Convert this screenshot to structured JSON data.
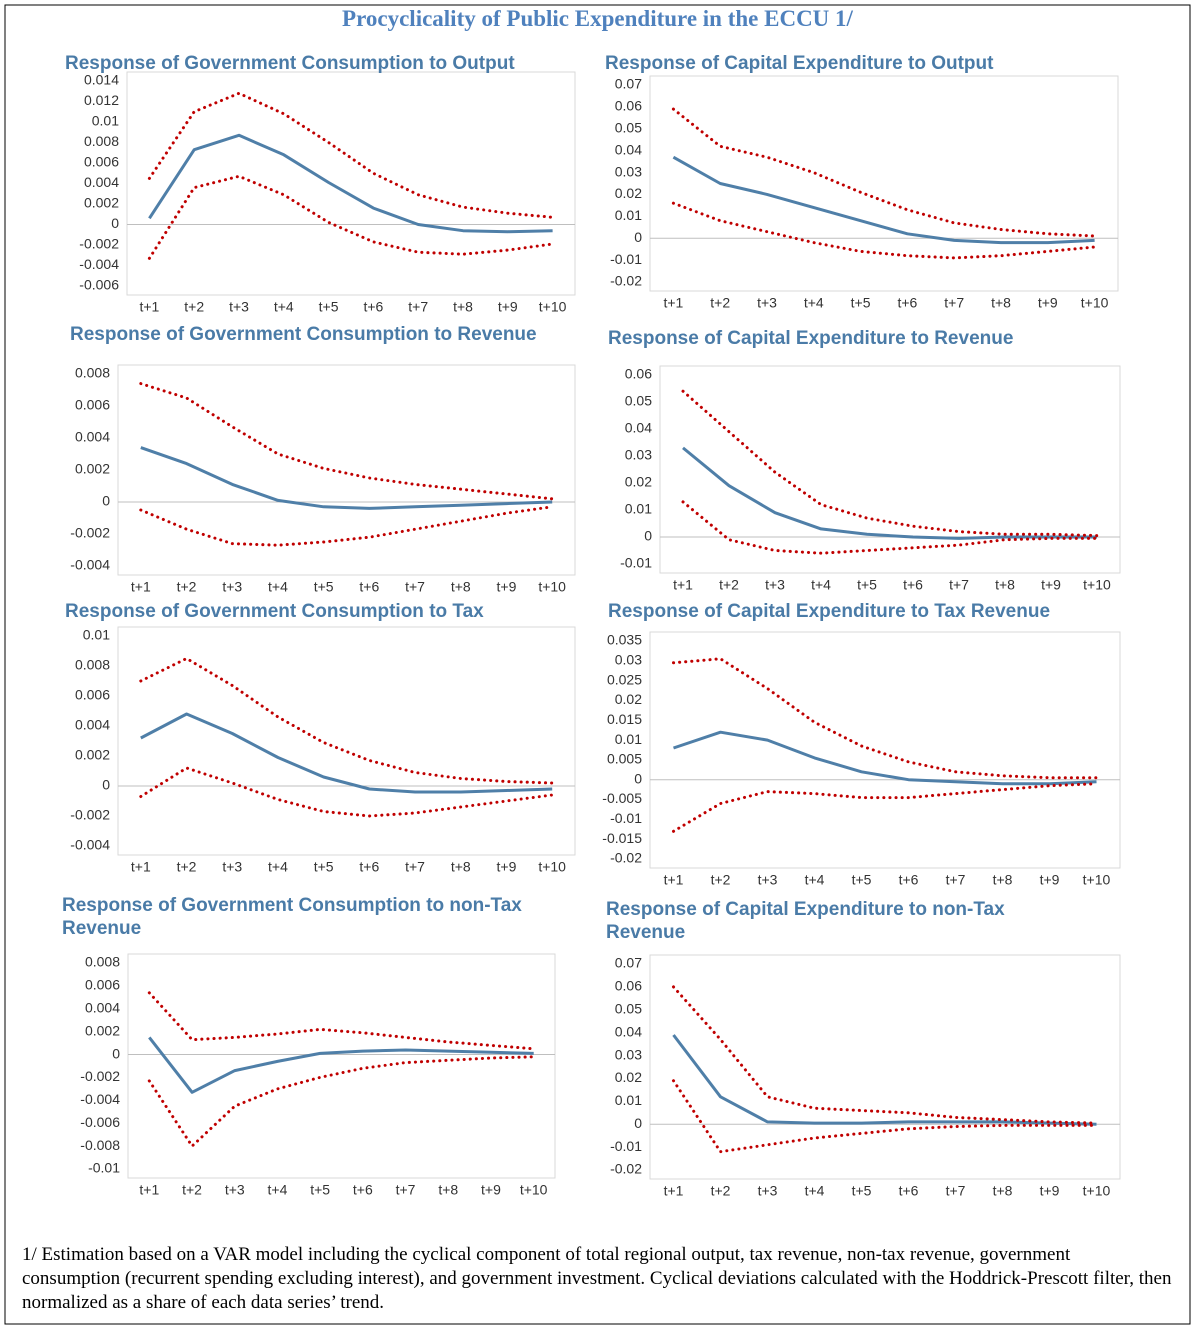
{
  "title": "Procyclicality of Public Expenditure in the ECCU 1/",
  "footnote": "1/ Estimation based on a VAR model including the cyclical component of total regional output, tax revenue, non-tax revenue, government consumption (recurrent spending excluding interest), and government investment. Cyclical deviations calculated with the Hoddrick-Prescott filter, then normalized as a share of each data series’ trend.",
  "chart_data": [
    {
      "type": "line",
      "title": "Response of Government Consumption to Output",
      "categories": [
        "t+1",
        "t+2",
        "t+3",
        "t+4",
        "t+5",
        "t+6",
        "t+7",
        "t+8",
        "t+9",
        "t+10"
      ],
      "ylim": [
        -0.006,
        0.014
      ],
      "yticks": [
        -0.006,
        -0.004,
        -0.002,
        0,
        0.002,
        0.004,
        0.006,
        0.008,
        0.01,
        0.012,
        0.014
      ],
      "series": [
        {
          "color": "#4f7fa8",
          "style": "solid",
          "values": [
            0.0006,
            0.0073,
            0.0087,
            0.0068,
            0.0041,
            0.0016,
            0.0,
            -0.0006,
            -0.0007,
            -0.0006
          ]
        },
        {
          "color": "#c00000",
          "style": "dotted",
          "values": [
            0.0045,
            0.011,
            0.0128,
            0.0108,
            0.008,
            0.005,
            0.0029,
            0.0017,
            0.0011,
            0.0007
          ]
        },
        {
          "color": "#c00000",
          "style": "dotted",
          "values": [
            -0.0033,
            0.0036,
            0.0047,
            0.0029,
            0.0002,
            -0.0017,
            -0.0027,
            -0.0029,
            -0.0025,
            -0.0019
          ]
        }
      ]
    },
    {
      "type": "line",
      "title": "Response of Capital Expenditure to Output",
      "categories": [
        "t+1",
        "t+2",
        "t+3",
        "t+4",
        "t+5",
        "t+6",
        "t+7",
        "t+8",
        "t+9",
        "t+10"
      ],
      "ylim": [
        -0.02,
        0.07
      ],
      "yticks": [
        -0.02,
        -0.01,
        0,
        0.01,
        0.02,
        0.03,
        0.04,
        0.05,
        0.06,
        0.07
      ],
      "series": [
        {
          "color": "#4f7fa8",
          "style": "solid",
          "values": [
            0.037,
            0.025,
            0.02,
            0.014,
            0.008,
            0.002,
            -0.001,
            -0.002,
            -0.002,
            -0.001
          ]
        },
        {
          "color": "#c00000",
          "style": "dotted",
          "values": [
            0.059,
            0.042,
            0.037,
            0.03,
            0.021,
            0.013,
            0.007,
            0.004,
            0.002,
            0.001
          ]
        },
        {
          "color": "#c00000",
          "style": "dotted",
          "values": [
            0.016,
            0.008,
            0.003,
            -0.002,
            -0.006,
            -0.008,
            -0.009,
            -0.008,
            -0.006,
            -0.004
          ]
        }
      ]
    },
    {
      "type": "line",
      "title": "Response of Government Consumption to Revenue",
      "categories": [
        "t+1",
        "t+2",
        "t+3",
        "t+4",
        "t+5",
        "t+6",
        "t+7",
        "t+8",
        "t+9",
        "t+10"
      ],
      "ylim": [
        -0.004,
        0.008
      ],
      "yticks": [
        -0.004,
        -0.002,
        0,
        0.002,
        0.004,
        0.006,
        0.008
      ],
      "series": [
        {
          "color": "#4f7fa8",
          "style": "solid",
          "values": [
            0.0034,
            0.0024,
            0.0011,
            0.0001,
            -0.0003,
            -0.0004,
            -0.0003,
            -0.0002,
            -0.0001,
            0
          ]
        },
        {
          "color": "#c00000",
          "style": "dotted",
          "values": [
            0.0074,
            0.0065,
            0.0047,
            0.003,
            0.0021,
            0.0015,
            0.0011,
            0.0008,
            0.0005,
            0.0002
          ]
        },
        {
          "color": "#c00000",
          "style": "dotted",
          "values": [
            -0.0005,
            -0.0017,
            -0.0026,
            -0.0027,
            -0.0025,
            -0.0022,
            -0.0017,
            -0.0012,
            -0.0007,
            -0.0003
          ]
        }
      ]
    },
    {
      "type": "line",
      "title": "Response of Capital Expenditure to Revenue",
      "categories": [
        "t+1",
        "t+2",
        "t+3",
        "t+4",
        "t+5",
        "t+6",
        "t+7",
        "t+8",
        "t+9",
        "t+10"
      ],
      "ylim": [
        -0.01,
        0.06
      ],
      "yticks": [
        -0.01,
        0,
        0.01,
        0.02,
        0.03,
        0.04,
        0.05,
        0.06
      ],
      "series": [
        {
          "color": "#4f7fa8",
          "style": "solid",
          "values": [
            0.033,
            0.019,
            0.009,
            0.003,
            0.001,
            0,
            -0.0005,
            0,
            0,
            0
          ]
        },
        {
          "color": "#c00000",
          "style": "dotted",
          "values": [
            0.054,
            0.039,
            0.024,
            0.012,
            0.007,
            0.004,
            0.002,
            0.001,
            0.001,
            0.0005
          ]
        },
        {
          "color": "#c00000",
          "style": "dotted",
          "values": [
            0.013,
            -0.001,
            -0.005,
            -0.006,
            -0.005,
            -0.004,
            -0.003,
            -0.001,
            -0.0005,
            -0.0005
          ]
        }
      ]
    },
    {
      "type": "line",
      "title": "Response of Government Consumption to Tax",
      "categories": [
        "t+1",
        "t+2",
        "t+3",
        "t+4",
        "t+5",
        "t+6",
        "t+7",
        "t+8",
        "t+9",
        "t+10"
      ],
      "ylim": [
        -0.004,
        0.01
      ],
      "yticks": [
        -0.004,
        -0.002,
        0,
        0.002,
        0.004,
        0.006,
        0.008,
        0.01
      ],
      "series": [
        {
          "color": "#4f7fa8",
          "style": "solid",
          "values": [
            0.0032,
            0.0048,
            0.0035,
            0.0019,
            0.0006,
            -0.0002,
            -0.0004,
            -0.0004,
            -0.0003,
            -0.0002
          ]
        },
        {
          "color": "#c00000",
          "style": "dotted",
          "values": [
            0.007,
            0.0085,
            0.0067,
            0.0046,
            0.0029,
            0.0017,
            0.0009,
            0.0005,
            0.0003,
            0.0002
          ]
        },
        {
          "color": "#c00000",
          "style": "dotted",
          "values": [
            -0.0007,
            0.0012,
            0.0002,
            -0.0009,
            -0.0017,
            -0.002,
            -0.0018,
            -0.0014,
            -0.001,
            -0.0006
          ]
        }
      ]
    },
    {
      "type": "line",
      "title": "Response of Capital Expenditure to Tax Revenue",
      "categories": [
        "t+1",
        "t+2",
        "t+3",
        "t+4",
        "t+5",
        "t+6",
        "t+7",
        "t+8",
        "t+9",
        "t+10"
      ],
      "ylim": [
        -0.02,
        0.035
      ],
      "yticks": [
        -0.02,
        -0.015,
        -0.01,
        -0.005,
        0,
        0.005,
        0.01,
        0.015,
        0.02,
        0.025,
        0.03,
        0.035
      ],
      "series": [
        {
          "color": "#4f7fa8",
          "style": "solid",
          "values": [
            0.008,
            0.012,
            0.01,
            0.0055,
            0.002,
            0,
            -0.0005,
            -0.001,
            -0.001,
            -0.0005
          ]
        },
        {
          "color": "#c00000",
          "style": "dotted",
          "values": [
            0.0295,
            0.0305,
            0.023,
            0.0145,
            0.0085,
            0.0045,
            0.002,
            0.001,
            0.0005,
            0.0005
          ]
        },
        {
          "color": "#c00000",
          "style": "dotted",
          "values": [
            -0.013,
            -0.006,
            -0.003,
            -0.0035,
            -0.0045,
            -0.0045,
            -0.0035,
            -0.0025,
            -0.0015,
            -0.001
          ]
        }
      ]
    },
    {
      "type": "line",
      "title": "Response of Government Consumption to non-Tax Revenue",
      "categories": [
        "t+1",
        "t+2",
        "t+3",
        "t+4",
        "t+5",
        "t+6",
        "t+7",
        "t+8",
        "t+9",
        "t+10"
      ],
      "ylim": [
        -0.01,
        0.008
      ],
      "yticks": [
        -0.01,
        -0.008,
        -0.006,
        -0.004,
        -0.002,
        0,
        0.002,
        0.004,
        0.006,
        0.008
      ],
      "series": [
        {
          "color": "#4f7fa8",
          "style": "solid",
          "values": [
            0.0015,
            -0.0033,
            -0.0014,
            -0.0006,
            0.0001,
            0.0003,
            0.0004,
            0.0003,
            0.0002,
            0.0001
          ]
        },
        {
          "color": "#c00000",
          "style": "dotted",
          "values": [
            0.0054,
            0.0013,
            0.0015,
            0.0018,
            0.0022,
            0.0019,
            0.0015,
            0.0011,
            0.0008,
            0.0005
          ]
        },
        {
          "color": "#c00000",
          "style": "dotted",
          "values": [
            -0.0023,
            -0.008,
            -0.0045,
            -0.003,
            -0.002,
            -0.0012,
            -0.0007,
            -0.0005,
            -0.0003,
            -0.0002
          ]
        }
      ]
    },
    {
      "type": "line",
      "title": "Response of Capital Expenditure to non-Tax Revenue",
      "categories": [
        "t+1",
        "t+2",
        "t+3",
        "t+4",
        "t+5",
        "t+6",
        "t+7",
        "t+8",
        "t+9",
        "t+10"
      ],
      "ylim": [
        -0.02,
        0.07
      ],
      "yticks": [
        -0.02,
        -0.01,
        0,
        0.01,
        0.02,
        0.03,
        0.04,
        0.05,
        0.06,
        0.07
      ],
      "series": [
        {
          "color": "#4f7fa8",
          "style": "solid",
          "values": [
            0.039,
            0.012,
            0.001,
            0.0005,
            0.0005,
            0.001,
            0.001,
            0.001,
            0.0005,
            0
          ]
        },
        {
          "color": "#c00000",
          "style": "dotted",
          "values": [
            0.06,
            0.037,
            0.012,
            0.007,
            0.006,
            0.005,
            0.003,
            0.002,
            0.001,
            0.0005
          ]
        },
        {
          "color": "#c00000",
          "style": "dotted",
          "values": [
            0.019,
            -0.012,
            -0.009,
            -0.006,
            -0.004,
            -0.002,
            -0.001,
            -0.0005,
            -0.0005,
            -0.0005
          ]
        }
      ]
    }
  ]
}
